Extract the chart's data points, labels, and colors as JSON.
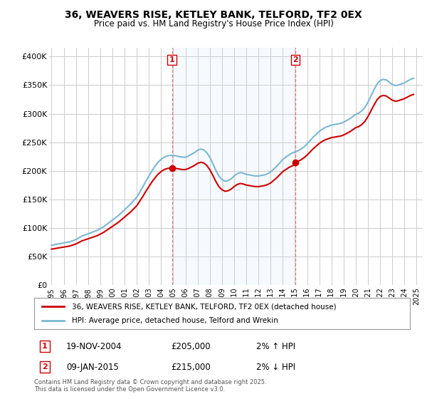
{
  "title": "36, WEAVERS RISE, KETLEY BANK, TELFORD, TF2 0EX",
  "subtitle": "Price paid vs. HM Land Registry's House Price Index (HPI)",
  "ylabel_ticks": [
    "£0",
    "£50K",
    "£100K",
    "£150K",
    "£200K",
    "£250K",
    "£300K",
    "£350K",
    "£400K"
  ],
  "ylabel_values": [
    0,
    50000,
    100000,
    150000,
    200000,
    250000,
    300000,
    350000,
    400000
  ],
  "ylim": [
    0,
    415000
  ],
  "xlim_start": 1994.8,
  "xlim_end": 2025.5,
  "sale1_date": "19-NOV-2004",
  "sale1_price": 205000,
  "sale1_hpi_change": "2% ↑ HPI",
  "sale2_date": "09-JAN-2015",
  "sale2_price": 215000,
  "sale2_hpi_change": "2% ↓ HPI",
  "legend_line1": "36, WEAVERS RISE, KETLEY BANK, TELFORD, TF2 0EX (detached house)",
  "legend_line2": "HPI: Average price, detached house, Telford and Wrekin",
  "footer": "Contains HM Land Registry data © Crown copyright and database right 2025.\nThis data is licensed under the Open Government Licence v3.0.",
  "hpi_color": "#7bb8d4",
  "price_color": "#cc0000",
  "background_color": "#ffffff",
  "plot_bg_color": "#ffffff",
  "between_fill_color": "#ddeeff",
  "grid_color": "#cccccc",
  "vline_color": "#e08080",
  "marker1_x": 2004.89,
  "marker2_x": 2015.03,
  "hpi_data_x": [
    1995.0,
    1995.25,
    1995.5,
    1995.75,
    1996.0,
    1996.25,
    1996.5,
    1996.75,
    1997.0,
    1997.25,
    1997.5,
    1997.75,
    1998.0,
    1998.25,
    1998.5,
    1998.75,
    1999.0,
    1999.25,
    1999.5,
    1999.75,
    2000.0,
    2000.25,
    2000.5,
    2000.75,
    2001.0,
    2001.25,
    2001.5,
    2001.75,
    2002.0,
    2002.25,
    2002.5,
    2002.75,
    2003.0,
    2003.25,
    2003.5,
    2003.75,
    2004.0,
    2004.25,
    2004.5,
    2004.75,
    2005.0,
    2005.25,
    2005.5,
    2005.75,
    2006.0,
    2006.25,
    2006.5,
    2006.75,
    2007.0,
    2007.25,
    2007.5,
    2007.75,
    2008.0,
    2008.25,
    2008.5,
    2008.75,
    2009.0,
    2009.25,
    2009.5,
    2009.75,
    2010.0,
    2010.25,
    2010.5,
    2010.75,
    2011.0,
    2011.25,
    2011.5,
    2011.75,
    2012.0,
    2012.25,
    2012.5,
    2012.75,
    2013.0,
    2013.25,
    2013.5,
    2013.75,
    2014.0,
    2014.25,
    2014.5,
    2014.75,
    2015.0,
    2015.25,
    2015.5,
    2015.75,
    2016.0,
    2016.25,
    2016.5,
    2016.75,
    2017.0,
    2017.25,
    2017.5,
    2017.75,
    2018.0,
    2018.25,
    2018.5,
    2018.75,
    2019.0,
    2019.25,
    2019.5,
    2019.75,
    2020.0,
    2020.25,
    2020.5,
    2020.75,
    2021.0,
    2021.25,
    2021.5,
    2021.75,
    2022.0,
    2022.25,
    2022.5,
    2022.75,
    2023.0,
    2023.25,
    2023.5,
    2023.75,
    2024.0,
    2024.25,
    2024.5,
    2024.75
  ],
  "hpi_data_y": [
    70000,
    71000,
    72000,
    73000,
    74000,
    75000,
    76000,
    78000,
    80000,
    83000,
    86000,
    88000,
    90000,
    92000,
    94000,
    96000,
    99000,
    102000,
    106000,
    110000,
    114000,
    118000,
    122000,
    127000,
    132000,
    137000,
    142000,
    148000,
    154000,
    163000,
    172000,
    182000,
    191000,
    200000,
    208000,
    215000,
    220000,
    224000,
    226000,
    227000,
    227000,
    226000,
    225000,
    224000,
    224000,
    226000,
    229000,
    232000,
    236000,
    238000,
    237000,
    232000,
    224000,
    213000,
    201000,
    191000,
    185000,
    182000,
    183000,
    186000,
    191000,
    195000,
    197000,
    196000,
    194000,
    193000,
    192000,
    191000,
    191000,
    192000,
    193000,
    195000,
    198000,
    203000,
    208000,
    214000,
    220000,
    224000,
    228000,
    231000,
    233000,
    235000,
    238000,
    242000,
    247000,
    253000,
    259000,
    264000,
    269000,
    273000,
    276000,
    278000,
    280000,
    281000,
    282000,
    283000,
    285000,
    288000,
    291000,
    295000,
    299000,
    301000,
    305000,
    311000,
    320000,
    331000,
    342000,
    352000,
    358000,
    360000,
    359000,
    355000,
    351000,
    349000,
    350000,
    352000,
    354000,
    357000,
    360000,
    362000
  ]
}
